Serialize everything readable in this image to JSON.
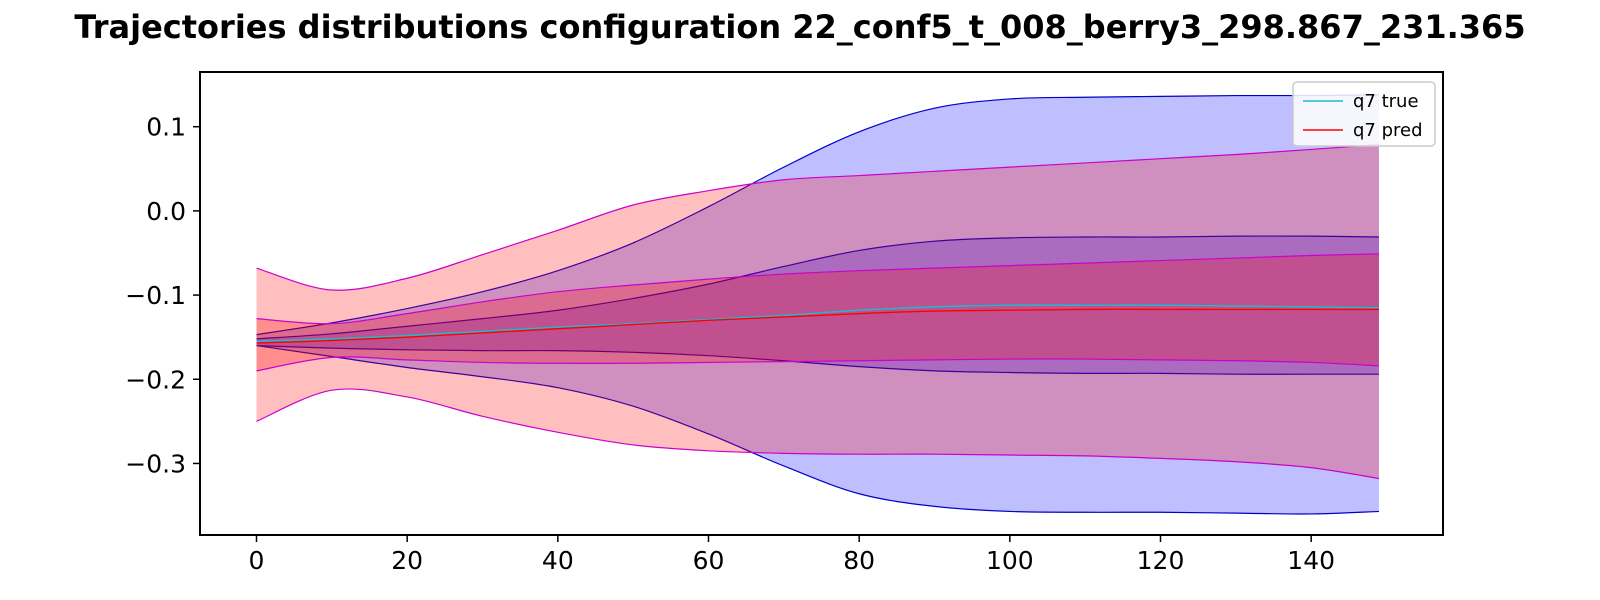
{
  "chart_data": {
    "type": "area",
    "title": "Trajectories distributions configuration  22_conf5_t_008_berry3_298.867_231.365",
    "xlabel": "",
    "ylabel": "",
    "xlim": [
      -7.5,
      157.5
    ],
    "ylim": [
      -0.385,
      0.165
    ],
    "xticks": [
      0,
      20,
      40,
      60,
      80,
      100,
      120,
      140
    ],
    "xtick_labels": [
      "0",
      "20",
      "40",
      "60",
      "80",
      "100",
      "120",
      "140"
    ],
    "yticks": [
      0.1,
      0.0,
      -0.1,
      -0.2,
      -0.3
    ],
    "ytick_labels": [
      "0.1",
      "0.0",
      "−0.1",
      "−0.2",
      "−0.3"
    ],
    "grid": false,
    "legend_position": "top-right",
    "x": [
      0,
      10,
      20,
      30,
      40,
      50,
      60,
      70,
      80,
      90,
      100,
      110,
      120,
      130,
      140,
      149
    ],
    "series": [
      {
        "name": "q7 true",
        "color": "#17becf",
        "values": [
          -0.155,
          -0.152,
          -0.148,
          -0.143,
          -0.138,
          -0.134,
          -0.129,
          -0.124,
          -0.118,
          -0.114,
          -0.112,
          -0.112,
          -0.112,
          -0.113,
          -0.114,
          -0.115
        ]
      },
      {
        "name": "q7 pred",
        "color": "#ff0000",
        "values": [
          -0.157,
          -0.154,
          -0.15,
          -0.145,
          -0.14,
          -0.135,
          -0.13,
          -0.126,
          -0.122,
          -0.119,
          -0.118,
          -0.117,
          -0.117,
          -0.117,
          -0.117,
          -0.117
        ]
      }
    ],
    "bands": [
      {
        "fill": "#0000ff",
        "edge": "#0000cc",
        "opacity": 0.25,
        "upper": [
          -0.147,
          -0.133,
          -0.116,
          -0.096,
          -0.071,
          -0.038,
          0.005,
          0.052,
          0.094,
          0.122,
          0.133,
          0.135,
          0.136,
          0.137,
          0.137,
          0.138
        ],
        "lower": [
          -0.16,
          -0.173,
          -0.186,
          -0.197,
          -0.21,
          -0.232,
          -0.265,
          -0.303,
          -0.336,
          -0.351,
          -0.357,
          -0.358,
          -0.358,
          -0.359,
          -0.36,
          -0.357
        ]
      },
      {
        "fill": "#0000ff",
        "edge": "#0000cc",
        "opacity": 0.25,
        "upper": [
          -0.152,
          -0.146,
          -0.137,
          -0.128,
          -0.118,
          -0.104,
          -0.087,
          -0.066,
          -0.047,
          -0.036,
          -0.032,
          -0.031,
          -0.031,
          -0.03,
          -0.03,
          -0.031
        ],
        "lower": [
          -0.16,
          -0.163,
          -0.165,
          -0.166,
          -0.166,
          -0.168,
          -0.172,
          -0.178,
          -0.185,
          -0.19,
          -0.192,
          -0.193,
          -0.193,
          -0.194,
          -0.194,
          -0.194
        ]
      },
      {
        "fill": "#ff0000",
        "edge": "#cc00cc",
        "opacity": 0.25,
        "upper": [
          -0.068,
          -0.094,
          -0.08,
          -0.052,
          -0.023,
          0.007,
          0.024,
          0.037,
          0.042,
          0.047,
          0.052,
          0.057,
          0.062,
          0.067,
          0.073,
          0.079
        ],
        "lower": [
          -0.25,
          -0.213,
          -0.221,
          -0.244,
          -0.263,
          -0.278,
          -0.285,
          -0.288,
          -0.289,
          -0.289,
          -0.29,
          -0.291,
          -0.294,
          -0.298,
          -0.305,
          -0.318
        ]
      },
      {
        "fill": "#ff0000",
        "edge": "#cc00cc",
        "opacity": 0.25,
        "upper": [
          -0.128,
          -0.134,
          -0.122,
          -0.108,
          -0.096,
          -0.088,
          -0.081,
          -0.075,
          -0.071,
          -0.068,
          -0.065,
          -0.062,
          -0.059,
          -0.056,
          -0.053,
          -0.051
        ],
        "lower": [
          -0.19,
          -0.174,
          -0.177,
          -0.18,
          -0.181,
          -0.181,
          -0.18,
          -0.179,
          -0.178,
          -0.177,
          -0.176,
          -0.176,
          -0.177,
          -0.178,
          -0.18,
          -0.184
        ]
      }
    ]
  }
}
